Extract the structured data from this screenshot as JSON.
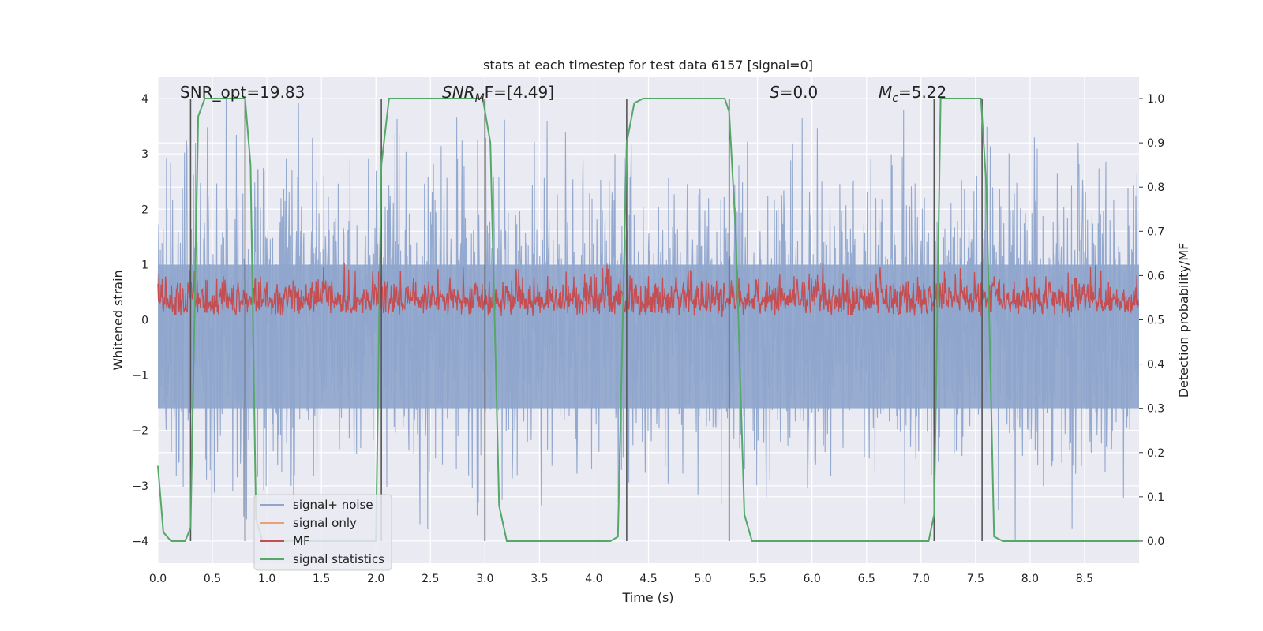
{
  "chart_data": {
    "type": "line",
    "title": "stats at each timestep for test data 6157 [signal=0]",
    "xlabel": "Time (s)",
    "ylabel_left": "Whitened strain",
    "ylabel_right": "Detection probability/MF",
    "xlim": [
      0.0,
      9.0
    ],
    "ylim_left": [
      -4.4,
      4.4
    ],
    "ylim_right": [
      -0.05,
      1.05
    ],
    "xticks": [
      "0.0",
      "0.5",
      "1.0",
      "1.5",
      "2.0",
      "2.5",
      "3.0",
      "3.5",
      "4.0",
      "4.5",
      "5.0",
      "5.5",
      "6.0",
      "6.5",
      "7.0",
      "7.5",
      "8.0",
      "8.5"
    ],
    "yticks_left": [
      "−4",
      "−3",
      "−2",
      "−1",
      "0",
      "1",
      "2",
      "3",
      "4"
    ],
    "yticks_right": [
      "0.0",
      "0.1",
      "0.2",
      "0.3",
      "0.4",
      "0.5",
      "0.6",
      "0.7",
      "0.8",
      "0.9",
      "1.0"
    ],
    "annotations": {
      "snr_opt": "SNR_opt=19.83",
      "snr_mf_sym": "SNR",
      "snr_mf_sub": "M",
      "snr_mf_rest": "F=[4.49]",
      "s_sym": "S",
      "s_rest": "=0.0",
      "mc_sym": "M",
      "mc_sub": "c",
      "mc_rest": "=5.22"
    },
    "legend": {
      "location": "lower-left",
      "entries": [
        "signal+ noise",
        "signal only",
        "MF",
        "signal statistics"
      ]
    },
    "colors": {
      "noise": "#8fa5cc",
      "signal": "#e8a07a",
      "mf": "#c44e52",
      "stats": "#55a868",
      "vlines": "#555555",
      "background": "#eaeaf2",
      "grid": "#ffffff"
    },
    "vertical_lines_s": [
      0.3,
      0.8,
      2.05,
      3.0,
      4.3,
      5.24,
      7.12,
      7.56
    ],
    "series": [
      {
        "name": "signal statistics",
        "axis": "right",
        "points": [
          [
            0.0,
            0.17
          ],
          [
            0.05,
            0.02
          ],
          [
            0.12,
            0.0
          ],
          [
            0.25,
            0.0
          ],
          [
            0.3,
            0.03
          ],
          [
            0.37,
            0.96
          ],
          [
            0.43,
            1.0
          ],
          [
            0.8,
            1.0
          ],
          [
            0.85,
            0.85
          ],
          [
            0.9,
            0.05
          ],
          [
            0.96,
            0.0
          ],
          [
            2.0,
            0.0
          ],
          [
            2.05,
            0.85
          ],
          [
            2.12,
            1.0
          ],
          [
            2.98,
            1.0
          ],
          [
            3.05,
            0.9
          ],
          [
            3.13,
            0.08
          ],
          [
            3.2,
            0.0
          ],
          [
            4.15,
            0.0
          ],
          [
            4.22,
            0.01
          ],
          [
            4.3,
            0.9
          ],
          [
            4.37,
            0.99
          ],
          [
            4.45,
            1.0
          ],
          [
            5.2,
            1.0
          ],
          [
            5.24,
            0.97
          ],
          [
            5.3,
            0.7
          ],
          [
            5.38,
            0.06
          ],
          [
            5.45,
            0.0
          ],
          [
            7.07,
            0.0
          ],
          [
            7.12,
            0.06
          ],
          [
            7.18,
            1.0
          ],
          [
            7.55,
            1.0
          ],
          [
            7.6,
            0.8
          ],
          [
            7.67,
            0.01
          ],
          [
            7.75,
            0.0
          ],
          [
            7.9,
            0.0
          ],
          [
            9.0,
            0.0
          ]
        ]
      }
    ]
  }
}
